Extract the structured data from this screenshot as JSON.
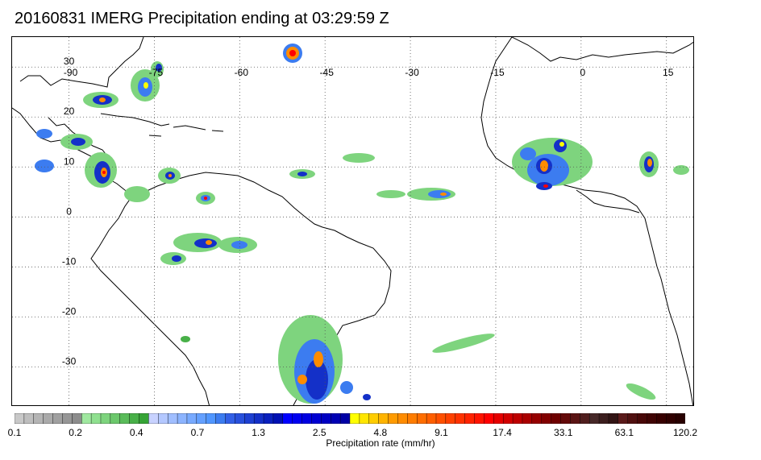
{
  "title": "20160831 IMERG Precipitation ending at 03:29:59 Z",
  "map": {
    "lon_range": [
      -100,
      20
    ],
    "lat_range": [
      -38,
      36
    ],
    "lon_ticks": [
      -90,
      -75,
      -60,
      -45,
      -30,
      -15,
      0,
      15
    ],
    "lat_ticks": [
      30,
      20,
      10,
      0,
      -10,
      -20,
      -30
    ],
    "lon_labels": [
      "-90",
      "-75",
      "-60",
      "-45",
      "-30",
      "-15",
      "0",
      "15"
    ],
    "lat_labels": [
      "30",
      "20",
      "10",
      "0",
      "-10",
      "-20",
      "-30"
    ],
    "grid": true
  },
  "colorbar": {
    "label": "Precipitation rate (mm/hr)",
    "tick_labels": [
      "0.1",
      "0.2",
      "0.4",
      "0.7",
      "1.3",
      "2.5",
      "4.8",
      "9.1",
      "17.4",
      "33.1",
      "63.1",
      "120.2"
    ],
    "colors": [
      "#c8c8c8",
      "#bebebe",
      "#b4b4b4",
      "#aaaaaa",
      "#a0a0a0",
      "#969696",
      "#8c8c8c",
      "#a0e8a0",
      "#8fe08f",
      "#7ed47e",
      "#6cc86c",
      "#5abc5a",
      "#48b048",
      "#36a436",
      "#c8d2ff",
      "#b4c8ff",
      "#a0beff",
      "#8cb4ff",
      "#78aaff",
      "#64a0ff",
      "#5096ff",
      "#3c7cf0",
      "#325fe6",
      "#2850dc",
      "#1e40d2",
      "#1430c8",
      "#0a20be",
      "#0010b4",
      "#0000ff",
      "#0000f0",
      "#0000e1",
      "#0000d2",
      "#0000c3",
      "#0000b4",
      "#0000a5",
      "#ffff00",
      "#ffe600",
      "#ffcd00",
      "#ffb400",
      "#ff9b00",
      "#ff8c00",
      "#ff7d00",
      "#ff6e00",
      "#ff5f00",
      "#ff5000",
      "#ff4100",
      "#ff3200",
      "#ff2300",
      "#ff1400",
      "#ff0000",
      "#e60000",
      "#d20000",
      "#be0000",
      "#aa0000",
      "#960000",
      "#820000",
      "#6e0000",
      "#640a0a",
      "#5a1414",
      "#501e1e",
      "#462828",
      "#3c1e1e",
      "#321414",
      "#5a1a1a",
      "#501010",
      "#480808",
      "#400404",
      "#380000",
      "#300000",
      "#280000"
    ]
  },
  "precip_colors": {
    "light_green": "#7ed47e",
    "green": "#48b048",
    "blue": "#3c7cf0",
    "dark_blue": "#1430c8",
    "yellow": "#ffff00",
    "orange": "#ff8c00",
    "red": "#ff0000",
    "dark_red": "#820000"
  }
}
